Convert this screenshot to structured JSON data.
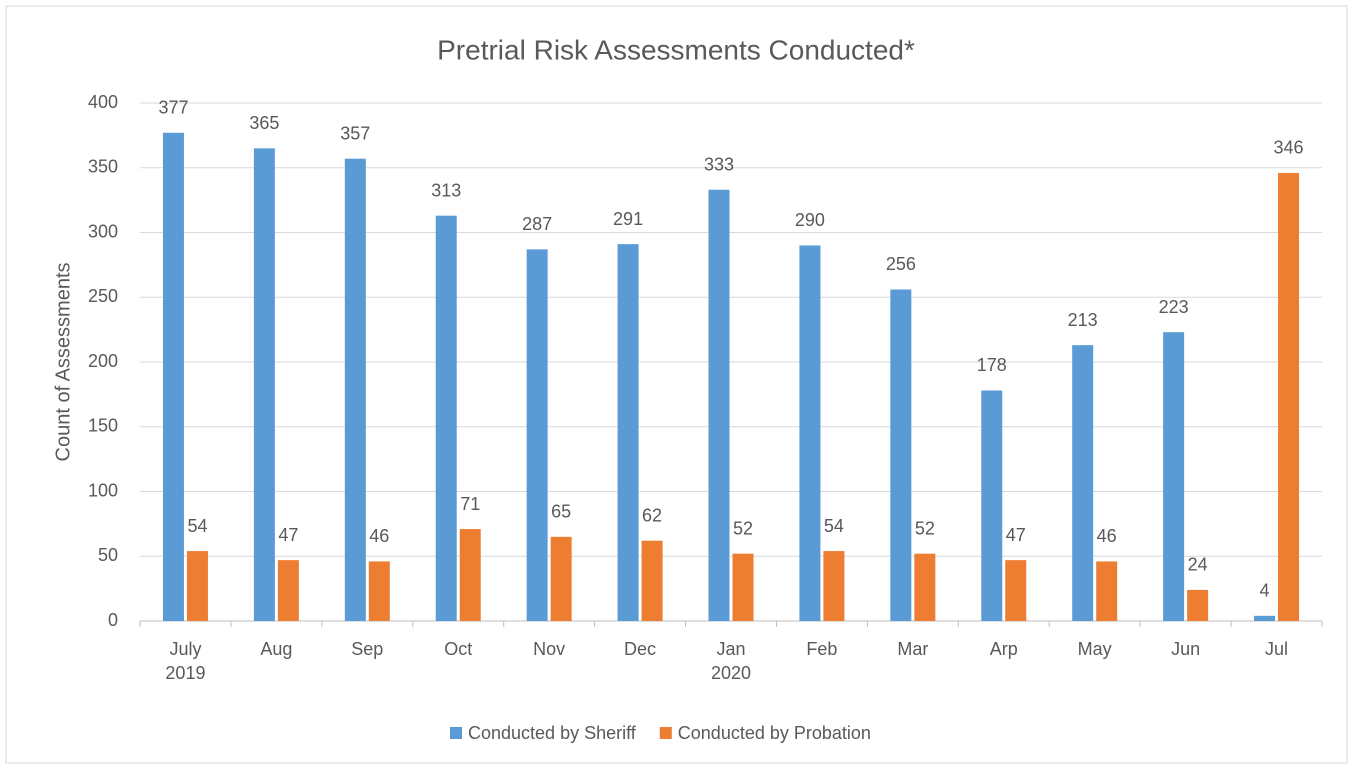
{
  "chart_data": {
    "type": "bar",
    "title": "Pretrial Risk Assessments Conducted*",
    "ylabel": "Count of Assessments",
    "categories": [
      "July\n2019",
      "Aug",
      "Sep",
      "Oct",
      "Nov",
      "Dec",
      "Jan\n2020",
      "Feb",
      "Mar",
      "Arp",
      "May",
      "Jun",
      "Jul"
    ],
    "series": [
      {
        "name": "Conducted by Sheriff",
        "color": "#5b9bd5",
        "values": [
          377,
          365,
          357,
          313,
          287,
          291,
          333,
          290,
          256,
          178,
          213,
          223,
          4
        ]
      },
      {
        "name": "Conducted by Probation",
        "color": "#ed7d31",
        "values": [
          54,
          47,
          46,
          71,
          65,
          62,
          52,
          54,
          52,
          47,
          46,
          24,
          346
        ]
      }
    ],
    "ylim": [
      0,
      400
    ],
    "yticks": [
      0,
      50,
      100,
      150,
      200,
      250,
      300,
      350,
      400
    ],
    "grid": true,
    "legend": "bottom"
  }
}
